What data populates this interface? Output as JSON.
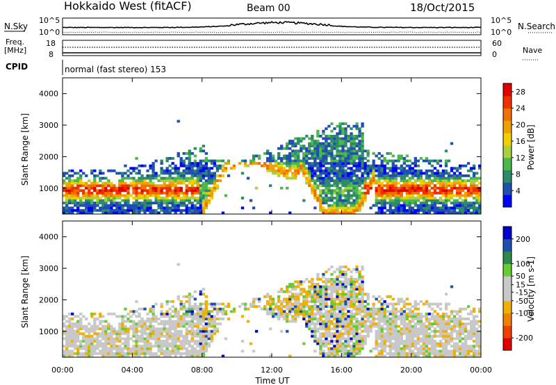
{
  "header": {
    "title": "Hokkaido West (fitACF)",
    "beam": "Beam 00",
    "date": "18/Oct/2015"
  },
  "panels": {
    "nsky": {
      "label": "N.Sky",
      "right_label": "N.Search",
      "tick_top": "10^5",
      "tick_bottom": "10^0",
      "right_tick_top": "10^5",
      "right_tick_bottom": "10^0"
    },
    "freq": {
      "label_line1": "Freq.",
      "label_line2": "[MHz]",
      "tick_top": "18",
      "tick_bottom": "8",
      "right_label": "Nave",
      "right_tick_top": "60",
      "right_tick_bottom": "0"
    },
    "cpid": {
      "label": "CPID",
      "text": "normal (fast stereo) 153"
    }
  },
  "colors": {
    "power_scale": [
      "#0000ff",
      "#1f4fb0",
      "#2e8a6a",
      "#4cb84c",
      "#a8d040",
      "#f0d000",
      "#f0a000",
      "#f07000",
      "#f03000",
      "#e00000"
    ],
    "velocity_scale": [
      "#e00000",
      "#f04000",
      "#f08000",
      "#f0b000",
      "#c8c8c8",
      "#c8c8c8",
      "#66cc33",
      "#2e8a4a",
      "#1f4fb0",
      "#0000cc"
    ]
  },
  "chart_data": [
    {
      "type": "heatmap",
      "name": "power",
      "ylabel": "Slant Range [km]",
      "yticks": [
        "1000",
        "2000",
        "3000",
        "4000"
      ],
      "ylim": [
        180,
        4500
      ],
      "colorbar_label": "Power [dB]",
      "colorbar_ticks": [
        "4",
        "8",
        "12",
        "16",
        "20",
        "24",
        "28"
      ],
      "colorbar_range": [
        0,
        30
      ]
    },
    {
      "type": "heatmap",
      "name": "velocity",
      "ylabel": "Slant Range [km]",
      "yticks": [
        "1000",
        "2000",
        "3000",
        "4000"
      ],
      "ylim": [
        180,
        4500
      ],
      "colorbar_label": "Velocity [m s-1]",
      "colorbar_ticks": [
        "-200",
        "-100",
        "-50",
        "-15",
        "15",
        "50",
        "100",
        "200"
      ],
      "colorbar_range": [
        -250,
        250
      ]
    }
  ],
  "xaxis": {
    "label": "Time UT",
    "ticks": [
      "00:00",
      "04:00",
      "08:00",
      "12:00",
      "16:00",
      "20:00",
      "00:00"
    ]
  }
}
